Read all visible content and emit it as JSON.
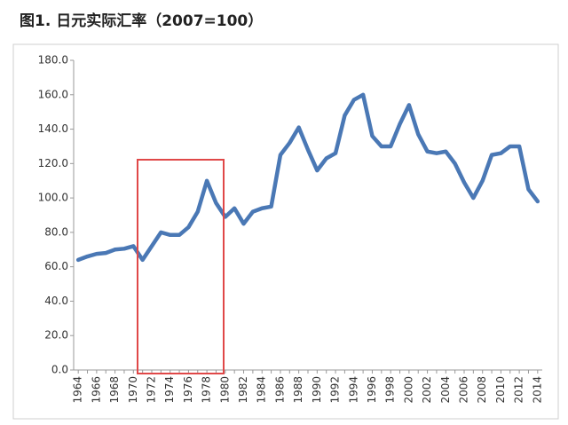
{
  "chart_data": {
    "type": "line",
    "title": "图1. 日元实际汇率（2007=100）",
    "categories": [
      "1964",
      null,
      "1966",
      null,
      "1968",
      null,
      "1970",
      null,
      "1972",
      null,
      "1974",
      null,
      "1976",
      null,
      "1978",
      null,
      "1980",
      null,
      "1982",
      null,
      "1984",
      null,
      "1986",
      null,
      "1988",
      null,
      "1990",
      null,
      "1992",
      null,
      "1994",
      null,
      "1996",
      null,
      "1998",
      null,
      "2000",
      null,
      "2002",
      null,
      "2004",
      null,
      "2006",
      null,
      "2008",
      null,
      "2010",
      null,
      "2012",
      null,
      "2014"
    ],
    "series": [
      {
        "color": "#4a78b5",
        "values": [
          64,
          66,
          67.5,
          68,
          70,
          70.5,
          72,
          64,
          72,
          80,
          78.5,
          78.5,
          83,
          92,
          110,
          97,
          89,
          94,
          85,
          92,
          94,
          95,
          125,
          132,
          141,
          128,
          116,
          123,
          126,
          148,
          157,
          160,
          136,
          130,
          130,
          143,
          154,
          137,
          127,
          126,
          127,
          120,
          109,
          100,
          110,
          125,
          126,
          130,
          130,
          105,
          98
        ]
      }
    ],
    "ylim": [
      0,
      180
    ],
    "yticks": [
      {
        "value": 0,
        "label": "0.0"
      },
      {
        "value": 20,
        "label": "20.0"
      },
      {
        "value": 40,
        "label": "40.0"
      },
      {
        "value": 60,
        "label": "60.0"
      },
      {
        "value": 80,
        "label": "80.0"
      },
      {
        "value": 100,
        "label": "100.0"
      },
      {
        "value": 120,
        "label": "120.0"
      },
      {
        "value": 140,
        "label": "140.0"
      },
      {
        "value": 160,
        "label": "160.0"
      },
      {
        "value": 180,
        "label": "180.0"
      }
    ],
    "grid": false
  }
}
